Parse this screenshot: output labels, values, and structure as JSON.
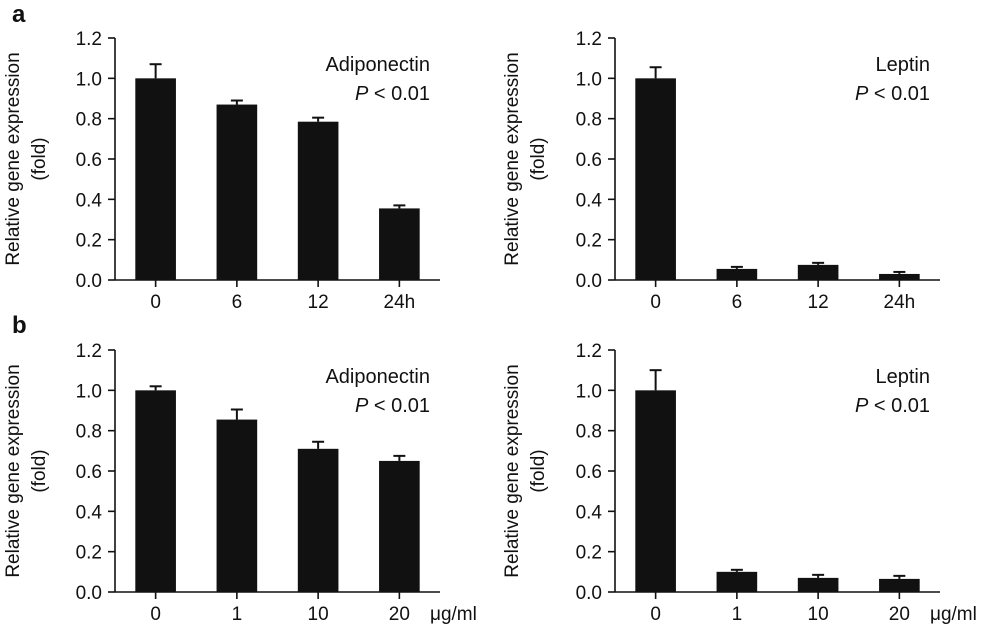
{
  "figure": {
    "panel_letters": [
      "a",
      "b"
    ]
  },
  "chart_data": [
    {
      "type": "bar",
      "panel": "a",
      "categories": [
        "0",
        "6",
        "12",
        "24h"
      ],
      "values": [
        1.0,
        0.87,
        0.785,
        0.355
      ],
      "errors": [
        0.07,
        0.02,
        0.02,
        0.015
      ],
      "ylim": [
        0,
        1.2
      ],
      "yticks": [
        "0.0",
        "0.2",
        "0.4",
        "0.6",
        "0.8",
        "1.0",
        "1.2"
      ],
      "ylabel": [
        "Relative gene expression",
        "(fold)"
      ],
      "xlabel": "",
      "unit": "",
      "annotation": "Adiponectin",
      "pvalue_italic": "P",
      "pvalue_rest": "< 0.01",
      "color": "#111111"
    },
    {
      "type": "bar",
      "panel": "a",
      "categories": [
        "0",
        "6",
        "12",
        "24h"
      ],
      "values": [
        1.0,
        0.055,
        0.075,
        0.03
      ],
      "errors": [
        0.055,
        0.01,
        0.01,
        0.01
      ],
      "ylim": [
        0,
        1.2
      ],
      "yticks": [
        "0.0",
        "0.2",
        "0.4",
        "0.6",
        "0.8",
        "1.0",
        "1.2"
      ],
      "ylabel": [
        "Relative gene expression",
        "(fold)"
      ],
      "xlabel": "",
      "unit": "",
      "annotation": "Leptin",
      "pvalue_italic": "P",
      "pvalue_rest": "< 0.01",
      "color": "#111111"
    },
    {
      "type": "bar",
      "panel": "b",
      "categories": [
        "0",
        "1",
        "10",
        "20"
      ],
      "values": [
        1.0,
        0.855,
        0.71,
        0.65
      ],
      "errors": [
        0.02,
        0.05,
        0.035,
        0.025
      ],
      "ylim": [
        0,
        1.2
      ],
      "yticks": [
        "0.0",
        "0.2",
        "0.4",
        "0.6",
        "0.8",
        "1.0",
        "1.2"
      ],
      "ylabel": [
        "Relative gene expression",
        "(fold)"
      ],
      "xlabel": "",
      "unit": "μg/ml",
      "annotation": "Adiponectin",
      "pvalue_italic": "P",
      "pvalue_rest": "< 0.01",
      "color": "#111111"
    },
    {
      "type": "bar",
      "panel": "b",
      "categories": [
        "0",
        "1",
        "10",
        "20"
      ],
      "values": [
        1.0,
        0.1,
        0.07,
        0.065
      ],
      "errors": [
        0.1,
        0.01,
        0.015,
        0.015
      ],
      "ylim": [
        0,
        1.2
      ],
      "yticks": [
        "0.0",
        "0.2",
        "0.4",
        "0.6",
        "0.8",
        "1.0",
        "1.2"
      ],
      "ylabel": [
        "Relative gene expression",
        "(fold)"
      ],
      "xlabel": "",
      "unit": "μg/ml",
      "annotation": "Leptin",
      "pvalue_italic": "P",
      "pvalue_rest": "< 0.01",
      "color": "#111111"
    }
  ]
}
